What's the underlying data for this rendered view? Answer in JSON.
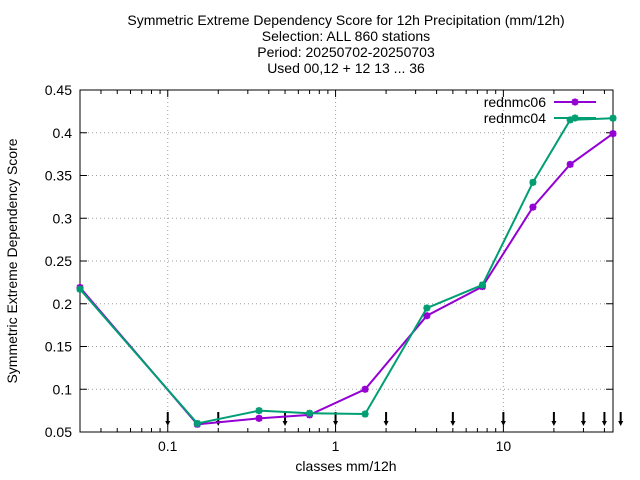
{
  "chart_data": {
    "type": "line",
    "title_lines": [
      "Symmetric Extreme Dependency Score  for 12h Precipitation (mm/12h)",
      "Selection: ALL    860 stations",
      "Period: 20250702-20250703",
      "Used 00,12 + 12 13 ... 36"
    ],
    "xlabel": "classes mm/12h",
    "ylabel": "Symmetric Extreme Dependency Score",
    "x_scale": "log",
    "xlim": [
      0.03,
      45
    ],
    "ylim": [
      0.05,
      0.45
    ],
    "x_ticks": [
      0.1,
      1,
      10
    ],
    "x_tick_labels": [
      "0.1",
      "1",
      "10"
    ],
    "y_ticks": [
      0.05,
      0.1,
      0.15,
      0.2,
      0.25,
      0.3,
      0.35,
      0.4,
      0.45
    ],
    "y_tick_labels": [
      "0.05",
      "0.1",
      "0.15",
      "0.2",
      "0.25",
      "0.3",
      "0.35",
      "0.4",
      "0.45"
    ],
    "grid": true,
    "legend_position": "top-right",
    "class_markers_x": [
      0.1,
      0.2,
      0.5,
      1,
      2,
      5,
      10,
      20,
      30,
      40,
      50
    ],
    "series": [
      {
        "name": "rednmc06",
        "color": "#9400d3",
        "x": [
          0.03,
          0.15,
          0.35,
          0.7,
          1.5,
          3.5,
          7.5,
          15,
          25,
          45
        ],
        "y": [
          0.219,
          0.059,
          0.066,
          0.07,
          0.1,
          0.186,
          0.22,
          0.313,
          0.363,
          0.399
        ]
      },
      {
        "name": "rednmc04",
        "color": "#009e73",
        "x": [
          0.03,
          0.15,
          0.35,
          0.7,
          1.5,
          3.5,
          7.5,
          15,
          25,
          45
        ],
        "y": [
          0.217,
          0.06,
          0.075,
          0.072,
          0.071,
          0.195,
          0.222,
          0.342,
          0.415,
          0.417
        ]
      }
    ]
  }
}
